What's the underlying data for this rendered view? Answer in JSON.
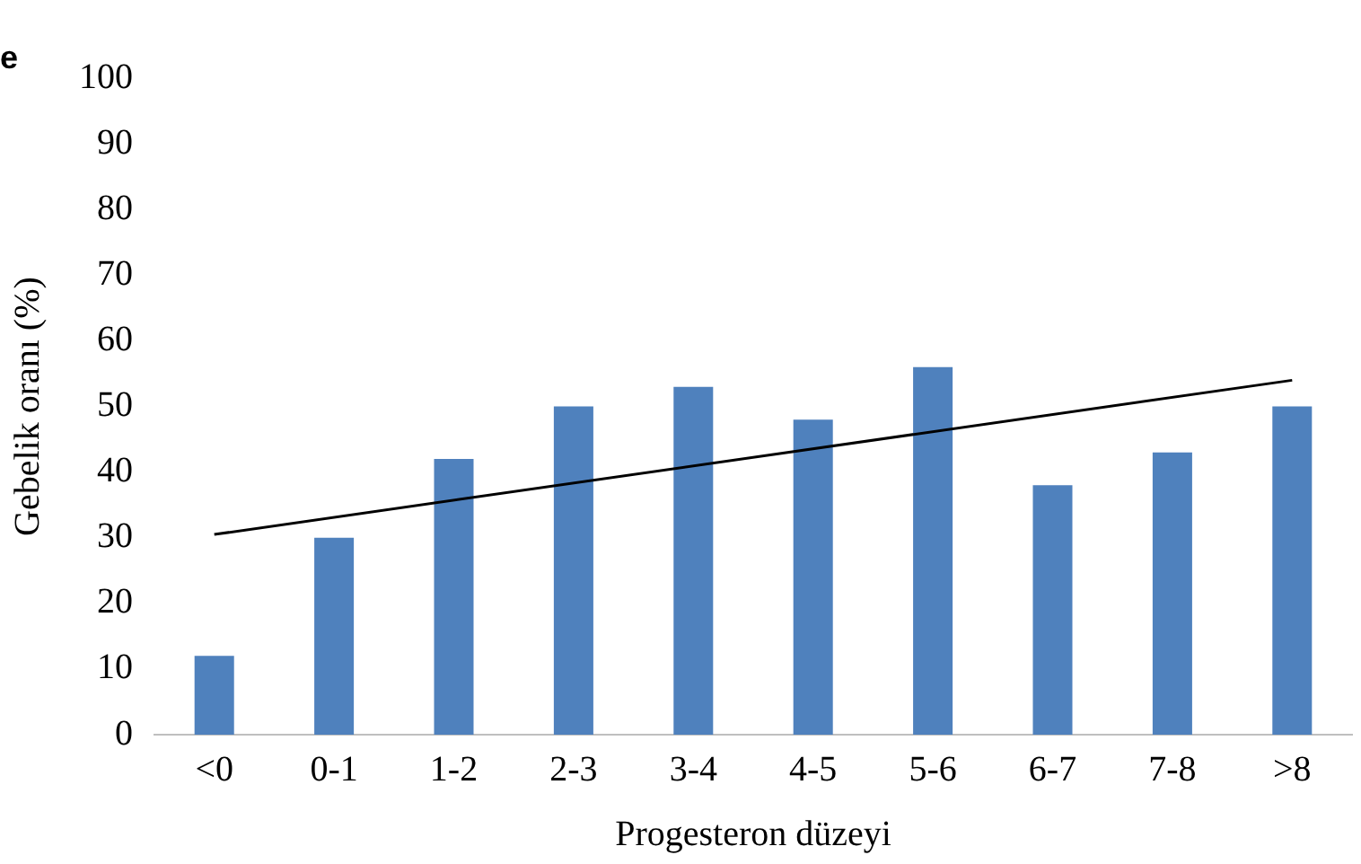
{
  "chart_data": {
    "type": "bar",
    "title": "e",
    "xlabel": "Progesteron düzeyi",
    "ylabel": "Gebelik oranı (%)",
    "categories": [
      "<0",
      "0-1",
      "1-2",
      "2-3",
      "3-4",
      "4-5",
      "5-6",
      "6-7",
      "7-8",
      ">8"
    ],
    "series": [
      {
        "color": "#4f81bd",
        "values": [
          12,
          30,
          42,
          50,
          53,
          48,
          56,
          38,
          43,
          50
        ]
      },
      {
        "type": "line",
        "color": "#000000",
        "x": [
          "<0",
          ">8"
        ],
        "values": [
          30.5,
          54
        ]
      }
    ],
    "ylim": [
      0,
      100
    ],
    "yticks": [
      0,
      10,
      20,
      30,
      40,
      50,
      60,
      70,
      80,
      90,
      100
    ],
    "grid": false,
    "legend": false,
    "marker": "none"
  }
}
